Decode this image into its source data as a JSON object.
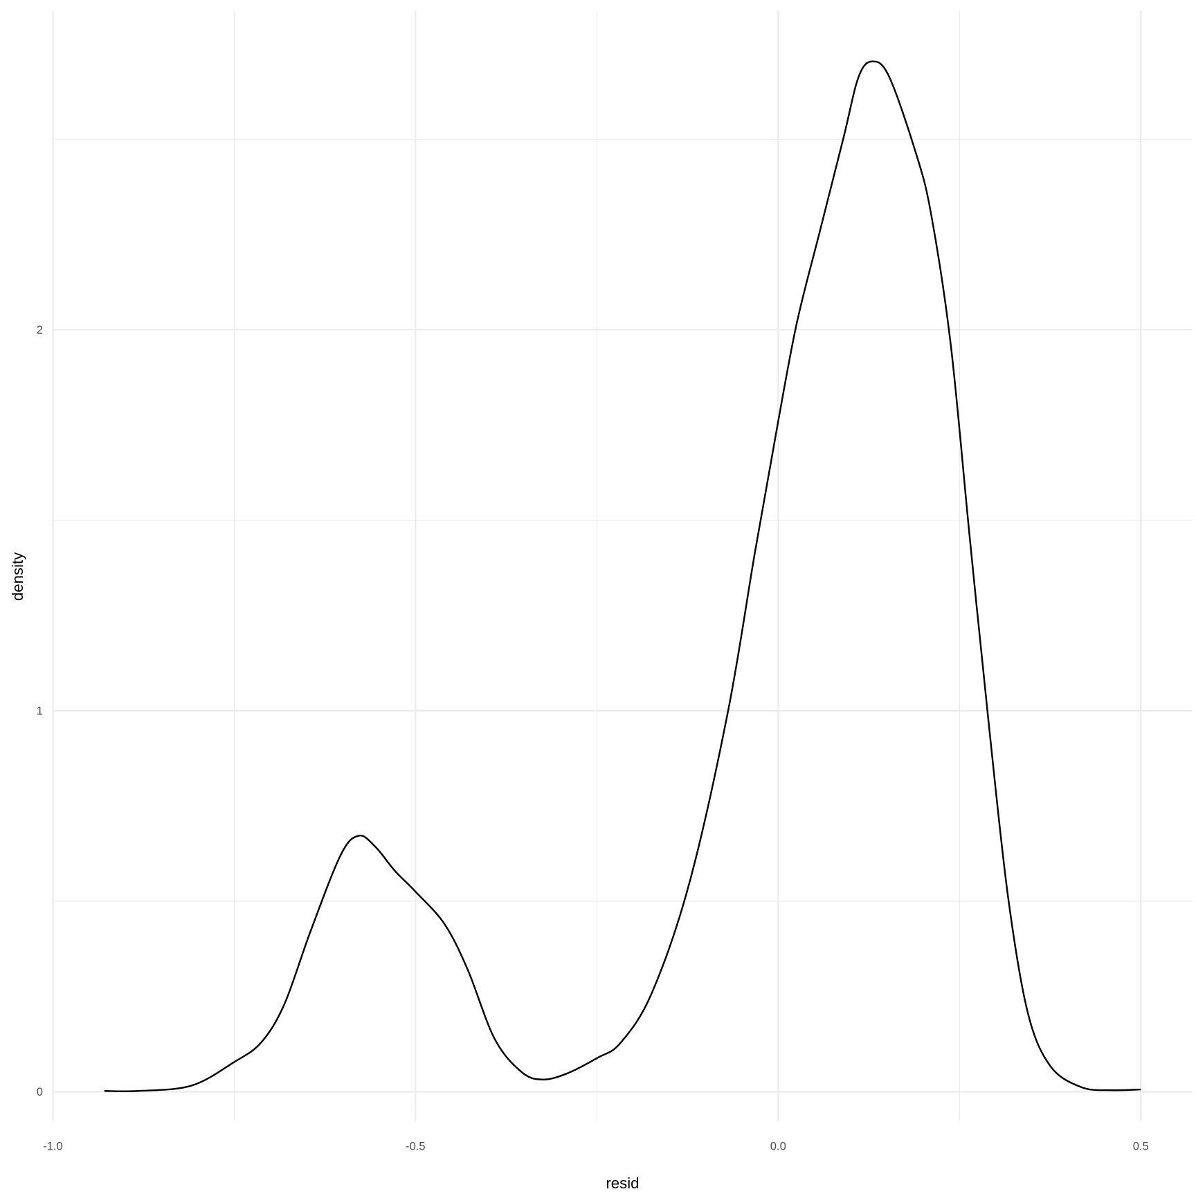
{
  "chart_data": {
    "type": "line",
    "title": "",
    "xlabel": "resid",
    "ylabel": "density",
    "xlim": [
      -1.0,
      0.57
    ],
    "ylim": [
      -0.11,
      2.84
    ],
    "x_ticks": [
      -1.0,
      -0.5,
      0.0,
      0.5
    ],
    "x_tick_labels": [
      "-1.0",
      "-0.5",
      "0.0",
      "0.5"
    ],
    "y_ticks": [
      0,
      1,
      2
    ],
    "y_tick_labels": [
      "0",
      "1",
      "2"
    ],
    "grid": true,
    "line_color": "#000000",
    "grid_color": "#ebebeb",
    "series": [
      {
        "x": [
          -0.929,
          -0.883,
          -0.809,
          -0.75,
          -0.713,
          -0.681,
          -0.645,
          -0.603,
          -0.578,
          -0.555,
          -0.529,
          -0.5,
          -0.46,
          -0.428,
          -0.391,
          -0.354,
          -0.325,
          -0.291,
          -0.249,
          -0.217,
          -0.174,
          -0.122,
          -0.069,
          -0.032,
          0.0,
          0.026,
          0.058,
          0.09,
          0.111,
          0.13,
          0.153,
          0.19,
          0.211,
          0.238,
          0.264,
          0.291,
          0.317,
          0.344,
          0.375,
          0.418,
          0.46,
          0.5
        ],
        "y": [
          0.002,
          0.002,
          0.016,
          0.078,
          0.129,
          0.229,
          0.42,
          0.622,
          0.672,
          0.642,
          0.581,
          0.525,
          0.44,
          0.32,
          0.139,
          0.052,
          0.032,
          0.048,
          0.089,
          0.129,
          0.26,
          0.551,
          1.0,
          1.416,
          1.759,
          2.02,
          2.262,
          2.503,
          2.664,
          2.704,
          2.664,
          2.463,
          2.302,
          1.96,
          1.457,
          0.954,
          0.511,
          0.209,
          0.068,
          0.012,
          0.004,
          0.006
        ]
      }
    ]
  }
}
